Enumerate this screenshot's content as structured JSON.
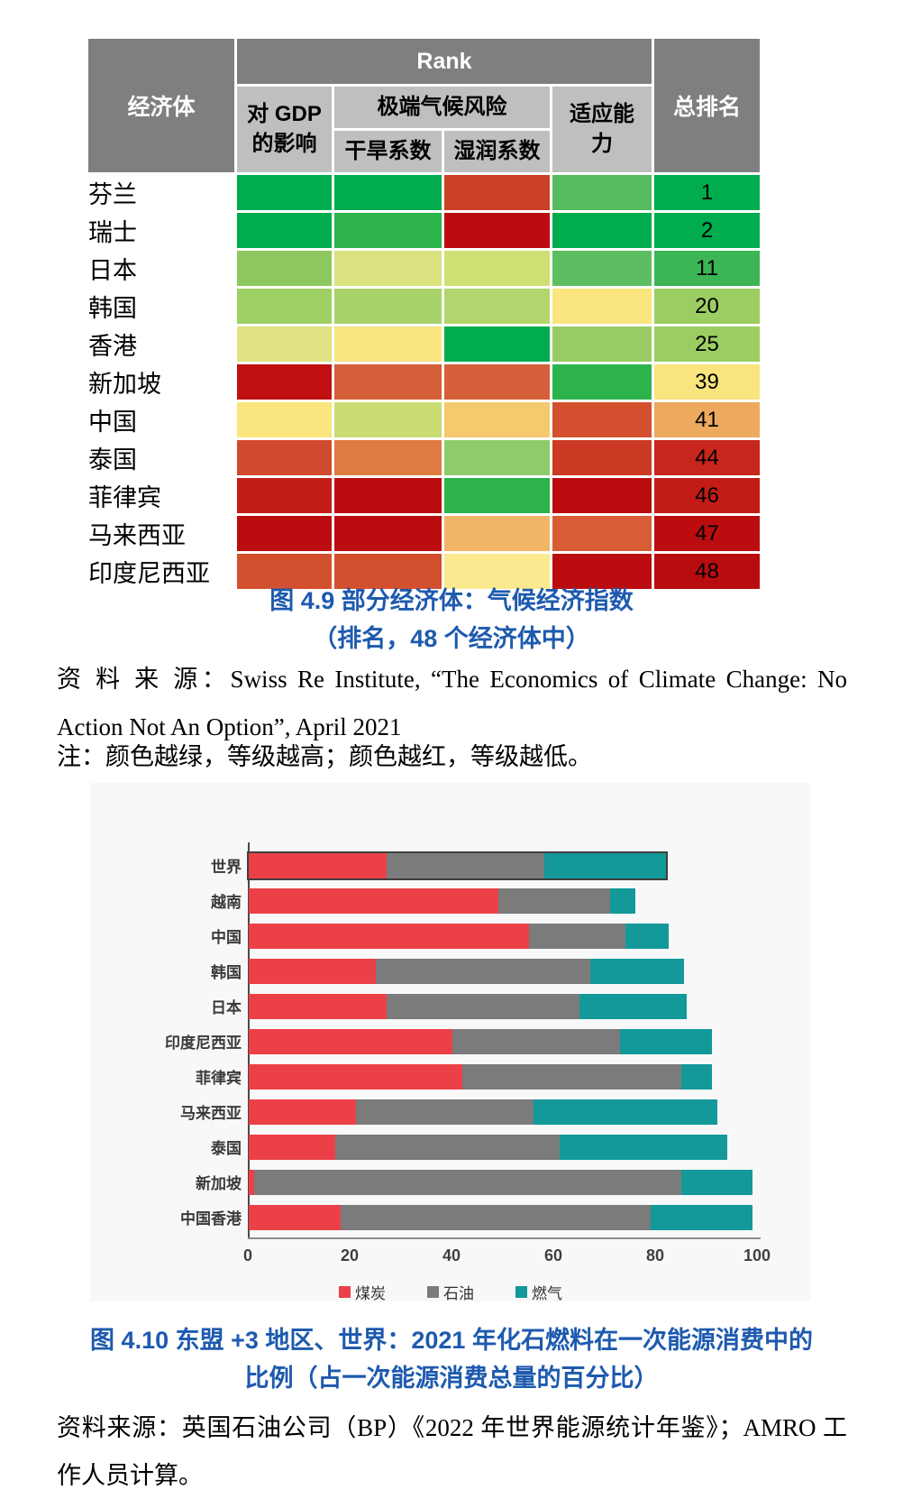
{
  "colors": {
    "caption_blue": "#1E5AAE",
    "header_dark_gray": "#7F7F7F",
    "header_light_gray": "#BFBFBF"
  },
  "table": {
    "headers": {
      "economy": "经济体",
      "rank_group": "Rank",
      "gdp_impact_line1": "对 GDP",
      "gdp_impact_line2": "的影响",
      "extreme_risk": "极端气候风险",
      "drought": "干旱系数",
      "wet": "湿润系数",
      "adaptation_line1": "适应能",
      "adaptation_line2": "力",
      "total_rank": "总排名"
    },
    "rows": [
      {
        "economy": "芬兰",
        "gdp": "#00AC4E",
        "drought": "#00AC4E",
        "wet": "#CB4125",
        "adapt": "#57BC5F",
        "rank": "1",
        "rank_bg": "#00AC4E"
      },
      {
        "economy": "瑞士",
        "gdp": "#00AC4E",
        "drought": "#2CB34C",
        "wet": "#BB0D10",
        "adapt": "#00AC4E",
        "rank": "2",
        "rank_bg": "#00AC4E"
      },
      {
        "economy": "日本",
        "gdp": "#8CC75F",
        "drought": "#D9E27E",
        "wet": "#CEDF74",
        "adapt": "#5DBD61",
        "rank": "11",
        "rank_bg": "#3CB554"
      },
      {
        "economy": "韩国",
        "gdp": "#9ED066",
        "drought": "#A8D36B",
        "wet": "#B2D56E",
        "adapt": "#FAE57F",
        "rank": "20",
        "rank_bg": "#9CCD63"
      },
      {
        "economy": "香港",
        "gdp": "#DFE381",
        "drought": "#FAE57F",
        "wet": "#00AC4E",
        "adapt": "#98CB64",
        "rank": "25",
        "rank_bg": "#9CCD63"
      },
      {
        "economy": "新加坡",
        "gdp": "#C01011",
        "drought": "#D45F38",
        "wet": "#D45F38",
        "adapt": "#2CB34C",
        "rank": "39",
        "rank_bg": "#FAE47E"
      },
      {
        "economy": "中国",
        "gdp": "#FAE57F",
        "drought": "#C9DC74",
        "wet": "#F5C96E",
        "adapt": "#D4502E",
        "rank": "41",
        "rank_bg": "#EDA95E"
      },
      {
        "economy": "泰国",
        "gdp": "#D24A2E",
        "drought": "#E07B41",
        "wet": "#8FCB68",
        "adapt": "#CC3A25",
        "rank": "44",
        "rank_bg": "#C6261C"
      },
      {
        "economy": "菲律宾",
        "gdp": "#C31C17",
        "drought": "#BB0D10",
        "wet": "#2CB34C",
        "adapt": "#BB0D10",
        "rank": "46",
        "rank_bg": "#C31C17"
      },
      {
        "economy": "马来西亚",
        "gdp": "#BB0D10",
        "drought": "#BB0D10",
        "wet": "#F2B566",
        "adapt": "#D85C36",
        "rank": "47",
        "rank_bg": "#BB0D10"
      },
      {
        "economy": "印度尼西亚",
        "gdp": "#D3502F",
        "drought": "#D3502F",
        "wet": "#FAE98E",
        "adapt": "#BB0D10",
        "rank": "48",
        "rank_bg": "#B90C0F"
      }
    ]
  },
  "figure49": {
    "caption_line1": "图 4.9 部分经济体：气候经济指数",
    "caption_line2": "（排名，48 个经济体中）",
    "source": "资 料 来 源：Swiss Re Institute, “The Economics of Climate Change: No Action Not An Option”, April 2021",
    "note": "注：颜色越绿，等级越高；颜色越红，等级越低。"
  },
  "chart_data": {
    "type": "bar",
    "orientation": "horizontal",
    "stacked": true,
    "categories": [
      "世界",
      "越南",
      "中国",
      "韩国",
      "日本",
      "印度尼西亚",
      "菲律宾",
      "马来西亚",
      "泰国",
      "新加坡",
      "中国香港"
    ],
    "series": [
      {
        "name": "煤炭",
        "color": "#EC4048",
        "values": [
          27,
          49,
          55,
          25,
          27,
          40,
          42,
          21,
          17,
          1,
          18
        ]
      },
      {
        "name": "石油",
        "color": "#7B7B7B",
        "values": [
          31,
          22,
          19,
          42,
          38,
          33,
          43,
          35,
          44,
          84,
          61
        ]
      },
      {
        "name": "燃气",
        "color": "#13999A",
        "values": [
          24,
          5,
          8.5,
          18.5,
          21,
          18,
          6,
          36,
          33,
          14,
          20
        ]
      }
    ],
    "xlim": [
      0,
      100
    ],
    "xticks": [
      0,
      20,
      40,
      60,
      80,
      100
    ],
    "highlight_category": "世界",
    "grid": false,
    "legend_position": "bottom"
  },
  "figure410": {
    "caption_line1": "图 4.10 东盟 +3 地区、世界：2021 年化石燃料在一次能源消费中的",
    "caption_line2": "比例（占一次能源消费总量的百分比）",
    "source": "资料来源：英国石油公司（BP）《2022 年世界能源统计年鉴》；AMRO 工作人员计算。"
  }
}
